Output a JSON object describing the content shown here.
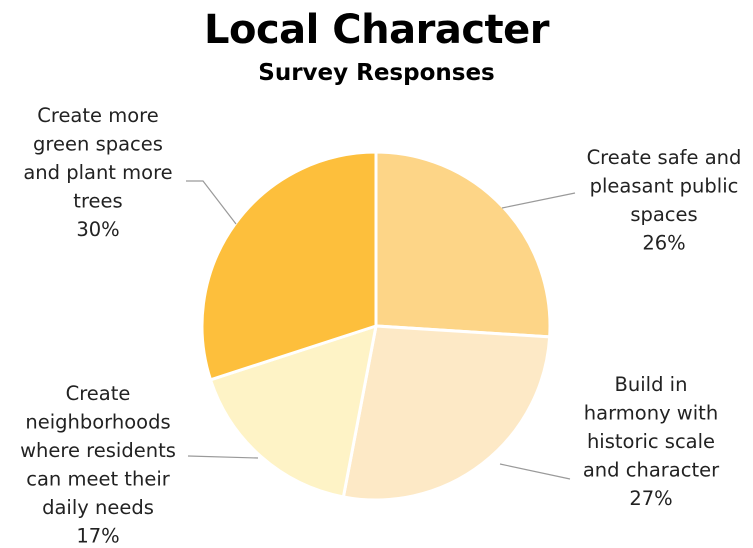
{
  "chart_data": {
    "type": "pie",
    "title": "Local Character",
    "subtitle": "Survey Responses",
    "slices": [
      {
        "label": "Create safe and pleasant public spaces",
        "label_lines": [
          "Create safe and",
          "pleasant public",
          "spaces"
        ],
        "value": 26,
        "percent_label": "26%",
        "color": "#FDD587"
      },
      {
        "label": "Build in harmony with historic scale and character",
        "label_lines": [
          "Build in",
          "harmony with",
          "historic scale",
          "and character"
        ],
        "value": 27,
        "percent_label": "27%",
        "color": "#FDE9C6"
      },
      {
        "label": "Create neighborhoods where residents can meet their daily needs",
        "label_lines": [
          "Create",
          "neighborhoods",
          "where residents",
          "can meet their",
          "daily needs"
        ],
        "value": 17,
        "percent_label": "17%",
        "color": "#FEF3C6"
      },
      {
        "label": "Create more green spaces and plant more trees",
        "label_lines": [
          "Create more",
          "green spaces",
          "and plant more",
          "trees"
        ],
        "value": 30,
        "percent_label": "30%",
        "color": "#FDBF3C"
      }
    ],
    "legend": "none",
    "data_labels": "outside with leader lines"
  }
}
